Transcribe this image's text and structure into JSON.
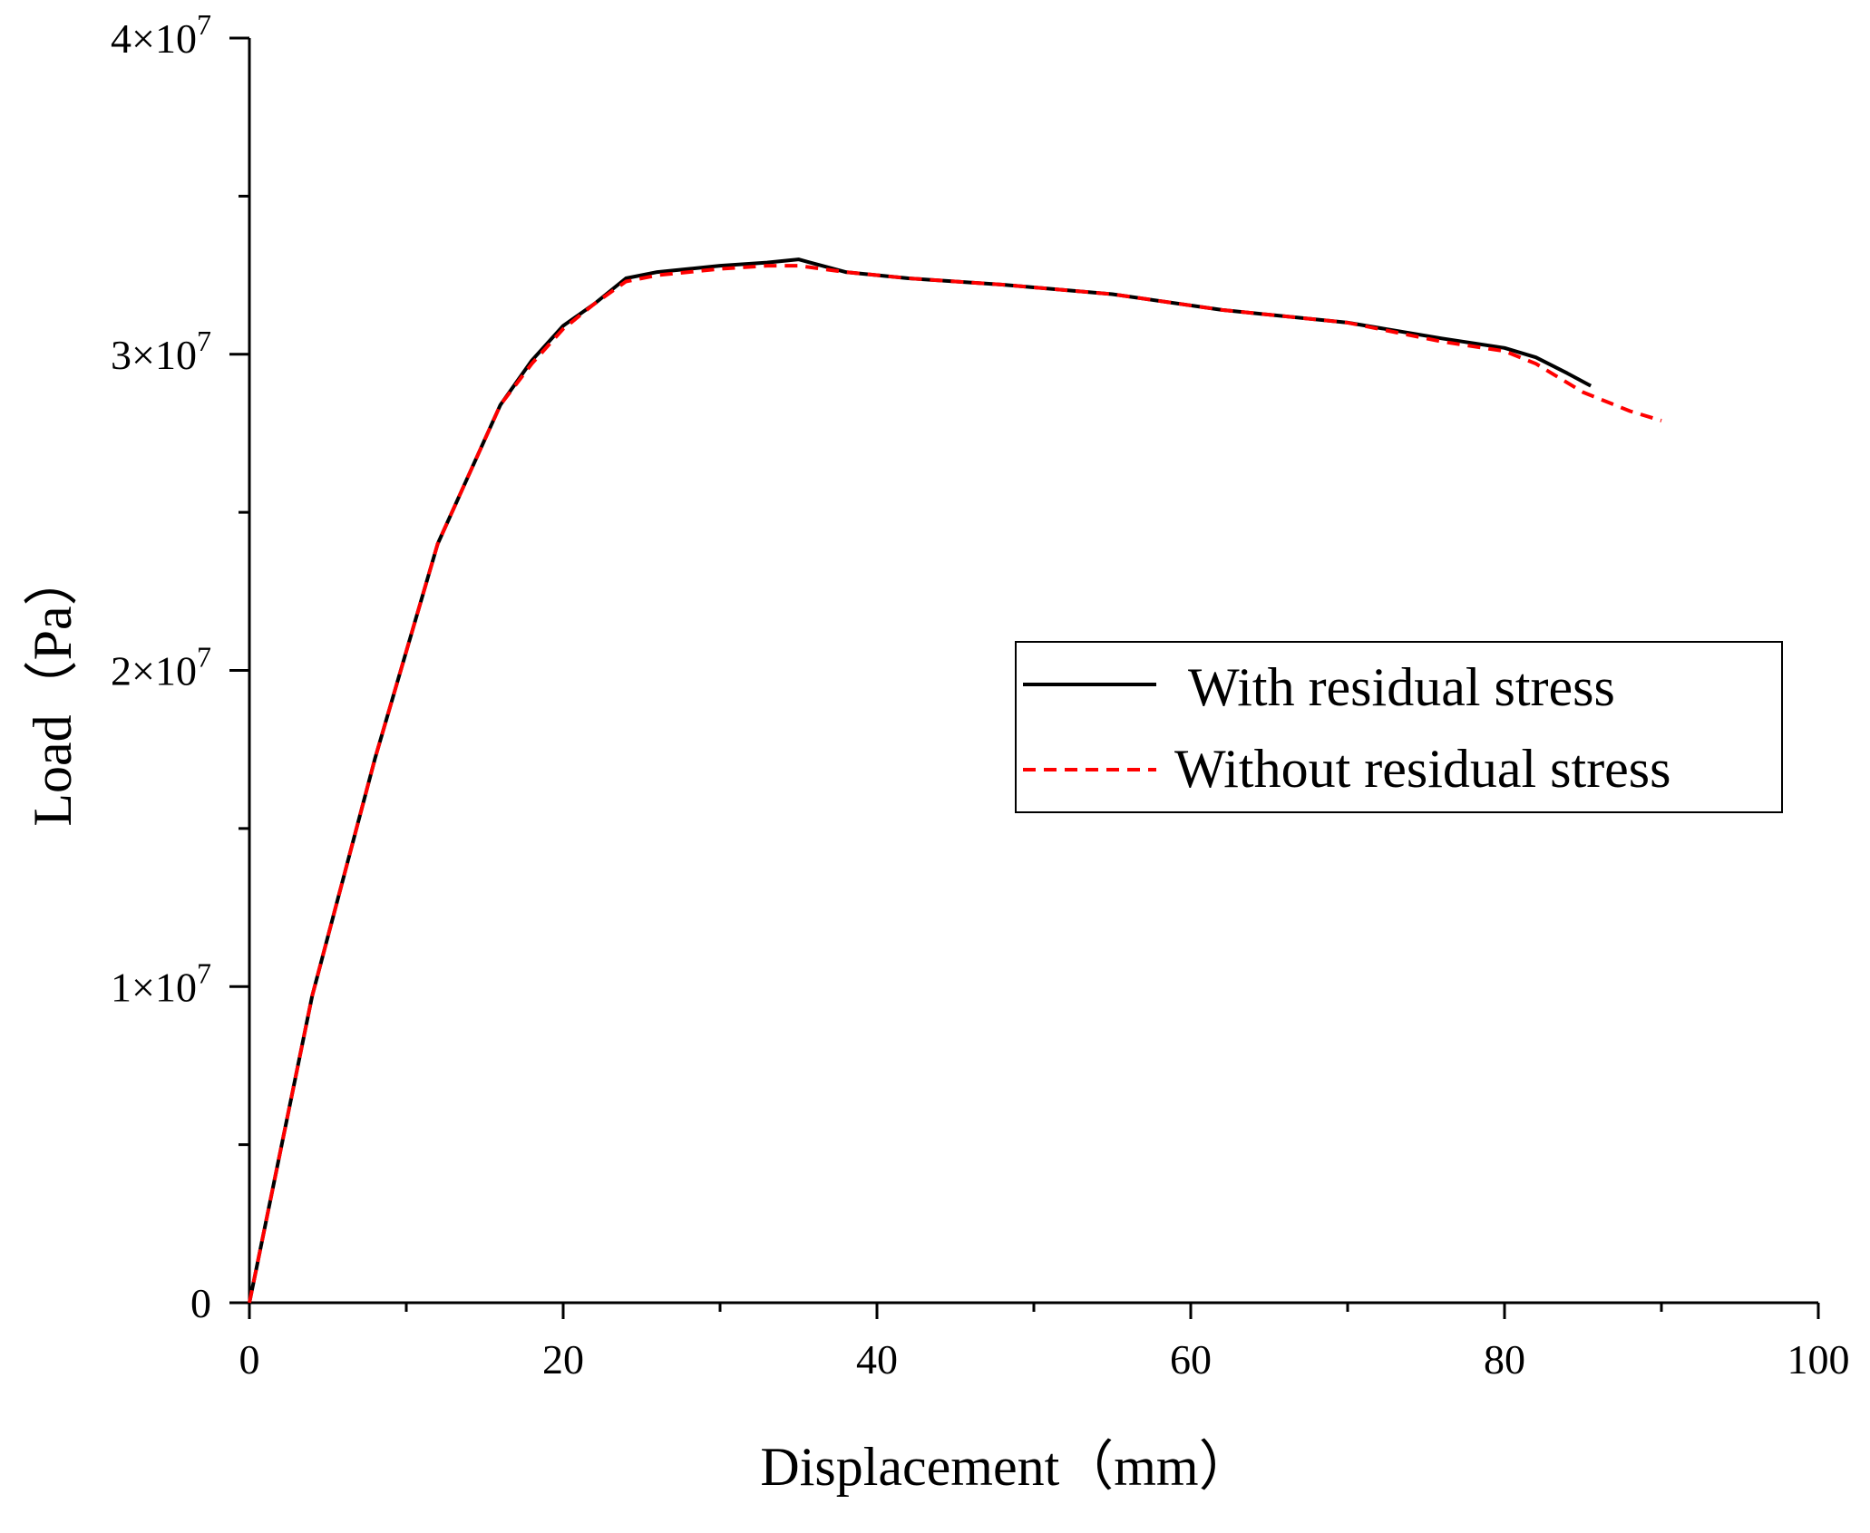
{
  "chart_data": {
    "type": "line",
    "title": "",
    "xlabel": "Displacement（mm）",
    "ylabel": "Load（Pa）",
    "xlim": [
      0,
      100
    ],
    "ylim": [
      0,
      40000000
    ],
    "x_ticks": [
      0,
      20,
      40,
      60,
      80,
      100
    ],
    "x_tick_labels": [
      "0",
      "20",
      "40",
      "60",
      "80",
      "100"
    ],
    "y_ticks": [
      0,
      10000000,
      20000000,
      30000000,
      40000000
    ],
    "y_tick_labels": [
      {
        "mantissa": "0",
        "exponent": ""
      },
      {
        "mantissa": "1×10",
        "exponent": "7"
      },
      {
        "mantissa": "2×10",
        "exponent": "7"
      },
      {
        "mantissa": "3×10",
        "exponent": "7"
      },
      {
        "mantissa": "4×10",
        "exponent": "7"
      }
    ],
    "grid": false,
    "legend_position": "right",
    "series": [
      {
        "name": "With residual stress",
        "color": "#000000",
        "style": "solid",
        "x": [
          0,
          4,
          8,
          12,
          16,
          18,
          20,
          22,
          24,
          26,
          28,
          30,
          33,
          35,
          38,
          42,
          48,
          55,
          62,
          70,
          76,
          80,
          82,
          84,
          85.5
        ],
        "y": [
          0,
          9700000,
          17200000,
          24000000,
          28400000,
          29800000,
          30900000,
          31600000,
          32400000,
          32600000,
          32700000,
          32800000,
          32900000,
          33000000,
          32600000,
          32400000,
          32200000,
          31900000,
          31400000,
          31000000,
          30500000,
          30200000,
          29900000,
          29400000,
          29000000
        ]
      },
      {
        "name": "Without residual stress",
        "color": "#ff0000",
        "style": "dashed",
        "x": [
          0,
          4,
          8,
          12,
          16,
          18,
          20,
          22,
          24,
          26,
          28,
          30,
          33,
          35,
          38,
          42,
          48,
          55,
          62,
          70,
          76,
          80,
          82,
          85,
          88,
          90
        ],
        "y": [
          0,
          9700000,
          17200000,
          24000000,
          28400000,
          29700000,
          30800000,
          31600000,
          32300000,
          32500000,
          32600000,
          32700000,
          32800000,
          32800000,
          32600000,
          32400000,
          32200000,
          31900000,
          31400000,
          31000000,
          30400000,
          30100000,
          29700000,
          28800000,
          28200000,
          27900000
        ]
      }
    ]
  }
}
